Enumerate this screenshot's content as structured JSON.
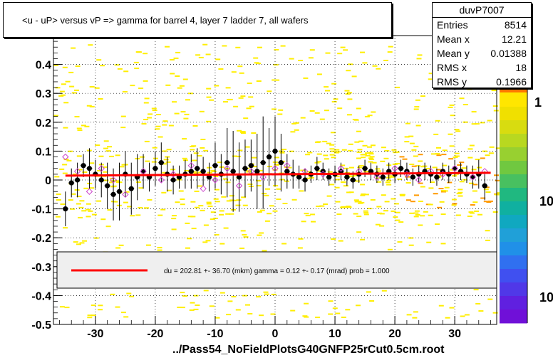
{
  "title": "<u - uP>       versus   vP =>  gamma for barrel 4, layer 7 ladder 7, all wafers",
  "footer": "../Pass54_NoFieldPlotsG40GNFP25rCut0.5cm.root",
  "stats": {
    "name": "duvP7007",
    "rows": [
      {
        "label": "Entries",
        "value": "8514"
      },
      {
        "label": "Mean x",
        "value": "12.21"
      },
      {
        "label": "Mean y",
        "value": "0.01388"
      },
      {
        "label": "RMS x",
        "value": "18"
      },
      {
        "label": "RMS y",
        "value": "0.1966"
      }
    ]
  },
  "legend": {
    "fit_label": "du =  202.81 +- 36.70 (mkm) gamma =    0.12 +-  0.17 (mrad) prob = 1.000",
    "line_color": "#ff0000"
  },
  "palette_labels": [
    "1",
    "10",
    "10"
  ],
  "colors": {
    "frame": "#000000",
    "fit": "#ff0000",
    "profile": "#000000",
    "open_marker": "#cc44cc",
    "heat_low": "#ffee00",
    "heat_mid": "#ff9900"
  },
  "chart_data": {
    "type": "scatter",
    "xlim": [
      -37,
      37
    ],
    "ylim": [
      -0.5,
      0.5
    ],
    "x_ticks": [
      -30,
      -20,
      -10,
      0,
      10,
      20,
      30
    ],
    "y_ticks": [
      -0.5,
      -0.4,
      -0.3,
      -0.2,
      -0.1,
      0,
      0.1,
      0.2,
      0.3,
      0.4
    ],
    "y_tick_labels": [
      "-0.5",
      "-0.4",
      "-0.3",
      "-0.2",
      "-0.1",
      "0",
      "0.1",
      "0.2",
      "0.3",
      "0.4"
    ],
    "x_tick_labels": [
      "-30",
      "-20",
      "-10",
      "0",
      "10",
      "20",
      "30"
    ],
    "fit_line": {
      "x": [
        -35,
        36
      ],
      "y": [
        0.015,
        0.025
      ]
    },
    "profile_points": {
      "x": [
        -35,
        -34,
        -33,
        -32,
        -31,
        -30,
        -29,
        -28,
        -27,
        -26,
        -25,
        -24,
        -23,
        -22,
        -21,
        -20,
        -19,
        -18,
        -17,
        -16,
        -15,
        -14,
        -13,
        -12,
        -11,
        -10,
        -9,
        -8,
        -7,
        -6,
        -5,
        -4,
        -3,
        -2,
        -1,
        0,
        1,
        2,
        3,
        4,
        5,
        6,
        7,
        8,
        9,
        10,
        11,
        12,
        13,
        14,
        15,
        16,
        17,
        18,
        19,
        20,
        21,
        22,
        23,
        24,
        25,
        26,
        27,
        28,
        29,
        30,
        31,
        32,
        33,
        34,
        35
      ],
      "y": [
        -0.1,
        -0.01,
        0.0,
        0.05,
        0.04,
        0.02,
        0.0,
        -0.02,
        -0.05,
        -0.04,
        0.02,
        -0.03,
        0.01,
        0.03,
        0.01,
        0.04,
        0.06,
        0.02,
        0.0,
        0.01,
        0.02,
        0.03,
        0.04,
        0.03,
        0.01,
        0.05,
        0.02,
        0.06,
        0.03,
        0.01,
        0.04,
        0.05,
        0.03,
        0.06,
        0.08,
        0.1,
        0.06,
        0.03,
        0.02,
        0.01,
        0.0,
        0.02,
        0.04,
        0.03,
        0.01,
        0.02,
        0.03,
        0.01,
        0.0,
        0.02,
        0.04,
        0.03,
        0.02,
        0.01,
        0.03,
        0.02,
        0.04,
        0.03,
        0.01,
        0.02,
        0.03,
        0.02,
        0.01,
        0.03,
        0.02,
        0.04,
        0.03,
        0.02,
        0.01,
        0.02,
        -0.02
      ],
      "err": [
        0.06,
        0.05,
        0.06,
        0.04,
        0.07,
        0.05,
        0.06,
        0.08,
        0.09,
        0.1,
        0.08,
        0.09,
        0.08,
        0.06,
        0.05,
        0.06,
        0.07,
        0.06,
        0.05,
        0.04,
        0.05,
        0.06,
        0.07,
        0.05,
        0.05,
        0.08,
        0.07,
        0.12,
        0.14,
        0.12,
        0.1,
        0.09,
        0.13,
        0.16,
        0.1,
        0.12,
        0.1,
        0.06,
        0.05,
        0.04,
        0.04,
        0.03,
        0.04,
        0.03,
        0.03,
        0.03,
        0.03,
        0.03,
        0.03,
        0.03,
        0.03,
        0.03,
        0.03,
        0.03,
        0.03,
        0.03,
        0.03,
        0.03,
        0.03,
        0.03,
        0.03,
        0.03,
        0.03,
        0.03,
        0.03,
        0.03,
        0.03,
        0.03,
        0.04,
        0.05,
        0.05
      ]
    },
    "open_points": {
      "x": [
        -35,
        -33,
        -31,
        -29,
        -27,
        -25,
        -22,
        -19,
        -17,
        -14,
        -12,
        -10,
        -8,
        -6,
        -4,
        -2,
        0,
        2,
        5,
        8,
        11,
        14,
        17,
        20,
        22,
        24,
        26,
        28,
        30,
        33,
        35
      ],
      "y": [
        0.08,
        0.03,
        -0.04,
        0.04,
        0.0,
        -0.05,
        0.03,
        0.0,
        0.02,
        0.05,
        -0.03,
        0.0,
        0.04,
        -0.02,
        0.03,
        0.01,
        0.04,
        0.05,
        0.03,
        0.02,
        0.04,
        0.03,
        0.01,
        0.04,
        0.02,
        0.0,
        0.03,
        0.02,
        0.04,
        0.01,
        0.03
      ]
    }
  }
}
